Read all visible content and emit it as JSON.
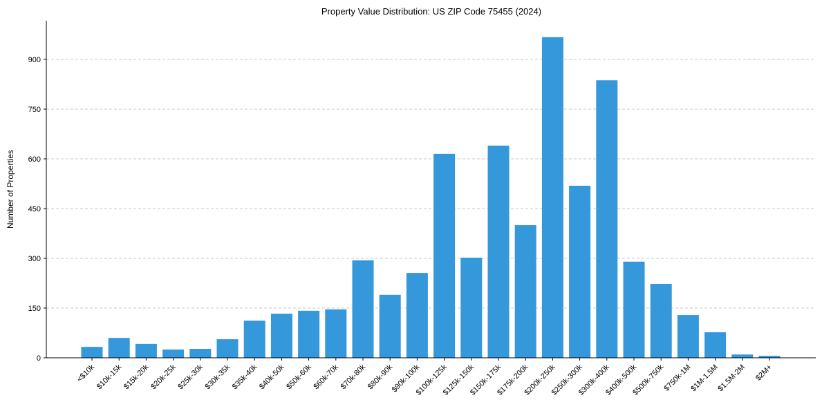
{
  "chart_data": {
    "type": "bar",
    "title": "Property Value Distribution: US ZIP Code 75455 (2024)",
    "xlabel": "",
    "ylabel": "Number of Properties",
    "ylim": [
      0,
      1010
    ],
    "yticks": [
      0,
      150,
      300,
      450,
      600,
      750,
      900
    ],
    "grid": "y-dashed",
    "color": "#3498db",
    "categories": [
      "<$10k",
      "$10k-15k",
      "$15k-20k",
      "$20k-25k",
      "$25k-30k",
      "$30k-35k",
      "$35k-40k",
      "$40k-50k",
      "$50k-60k",
      "$60k-70k",
      "$70k-80k",
      "$80k-90k",
      "$90k-100k",
      "$100k-125k",
      "$125k-150k",
      "$150k-175k",
      "$175k-200k",
      "$200k-250k",
      "$250k-300k",
      "$300k-400k",
      "$400k-500k",
      "$500k-750k",
      "$750k-1M",
      "$1M-1.5M",
      "$1.5M-2M",
      "$2M+"
    ],
    "values": [
      33,
      60,
      42,
      25,
      27,
      56,
      112,
      133,
      142,
      146,
      294,
      190,
      256,
      615,
      302,
      640,
      400,
      967,
      519,
      837,
      290,
      223,
      129,
      77,
      10,
      6
    ]
  }
}
